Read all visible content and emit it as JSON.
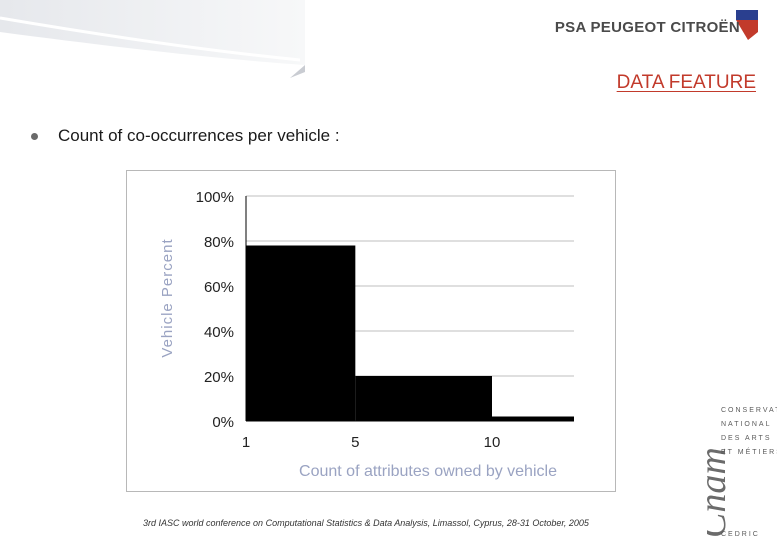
{
  "header": {
    "logo_text": "PSA PEUGEOT CITROËN",
    "section_title": "DATA FEATURE"
  },
  "bullet": {
    "text": "Count of co-occurrences per vehicle :"
  },
  "chart_data": {
    "type": "bar",
    "title": "",
    "xlabel": "Count of attributes owned by vehicle",
    "ylabel": "Vehicle Percent",
    "bins": [
      {
        "from": 1,
        "to": 5,
        "value": 78
      },
      {
        "from": 5,
        "to": 10,
        "value": 20
      },
      {
        "from": 10,
        "to": 13,
        "value": 2
      }
    ],
    "x_ticks": [
      "1",
      "5",
      "10"
    ],
    "y_ticks": [
      "0%",
      "20%",
      "40%",
      "60%",
      "80%",
      "100%"
    ],
    "ylim": [
      0,
      100
    ],
    "grid": true,
    "bar_color": "#000000",
    "axis_label_color": "#9aa3c2"
  },
  "side_logo": {
    "brand": "Cnam",
    "lines": [
      "CONSERVATOIRE",
      "NATIONAL",
      "DES ARTS",
      "ET MÉTIERS",
      "CEDRIC"
    ]
  },
  "footer": {
    "text": "3rd IASC world conference on Computational Statistics & Data Analysis, Limassol, Cyprus, 28-31 October, 2005"
  }
}
